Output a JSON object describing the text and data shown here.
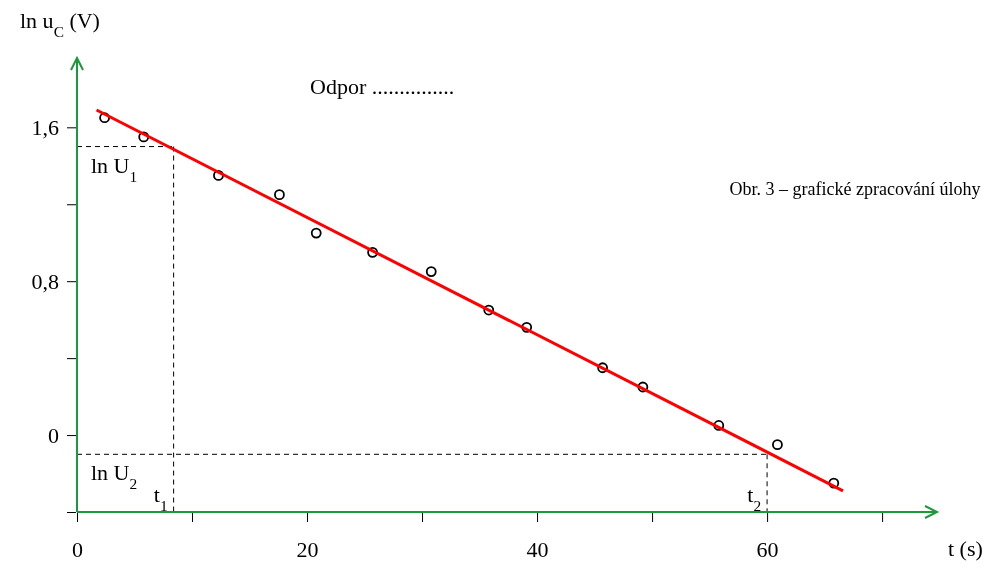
{
  "chart_data": {
    "type": "scatter",
    "xlabel": "t (s)",
    "ylabel": "ln u$_{C}$ (V)",
    "xlim": [
      0,
      74.6
    ],
    "ylim": [
      -0.4,
      1.95
    ],
    "xticks": [
      0,
      {
        "value": 10,
        "label": null
      },
      20,
      {
        "value": 30,
        "label": null
      },
      40,
      {
        "value": 50,
        "label": null
      },
      60,
      {
        "value": 70,
        "label": null
      }
    ],
    "yticks": [
      {
        "value": -0.4,
        "label": null
      },
      "0",
      {
        "value": 0.4,
        "label": null
      },
      {
        "value": 0.8,
        "label": "0,8"
      },
      {
        "value": 1.2,
        "label": null
      },
      {
        "value": 1.6,
        "label": "1,6"
      }
    ],
    "grid": false,
    "series": [
      {
        "marker": "circle",
        "color": "#000000",
        "x": [
          2.4,
          5.8,
          12.3,
          17.6,
          20.8,
          25.7,
          30.8,
          35.8,
          39.1,
          45.7,
          49.2,
          55.8,
          60.9,
          65.8
        ],
        "values": [
          1.65,
          1.55,
          1.35,
          1.25,
          1.05,
          0.95,
          0.85,
          0.65,
          0.56,
          0.35,
          0.25,
          0.05,
          -0.05,
          -0.25
        ]
      },
      {
        "type": "line",
        "color": "#ff0000",
        "x": [
          1.7,
          66.6
        ],
        "values": [
          1.69,
          -0.29
        ]
      }
    ],
    "ref_lines": [
      {
        "axis": "y",
        "value": 1.5,
        "label": "ln U$_{1}$",
        "color": "#000000",
        "line_style": "dashed"
      },
      {
        "axis": "x",
        "value": 8.4,
        "label": "t$_{1}$",
        "color": "#000000",
        "line_style": "dashed"
      },
      {
        "axis": "y",
        "value": -0.1,
        "label": "ln U$_{2}$",
        "color": "#000000",
        "line_style": "dashed"
      },
      {
        "axis": "x",
        "value": 60,
        "label": "t$_{2}$",
        "color": "#000000",
        "line_style": "dashed"
      }
    ],
    "annotations": [
      "Odpor ...............",
      "Obr. 3 – grafické zpracování úlohy"
    ]
  }
}
